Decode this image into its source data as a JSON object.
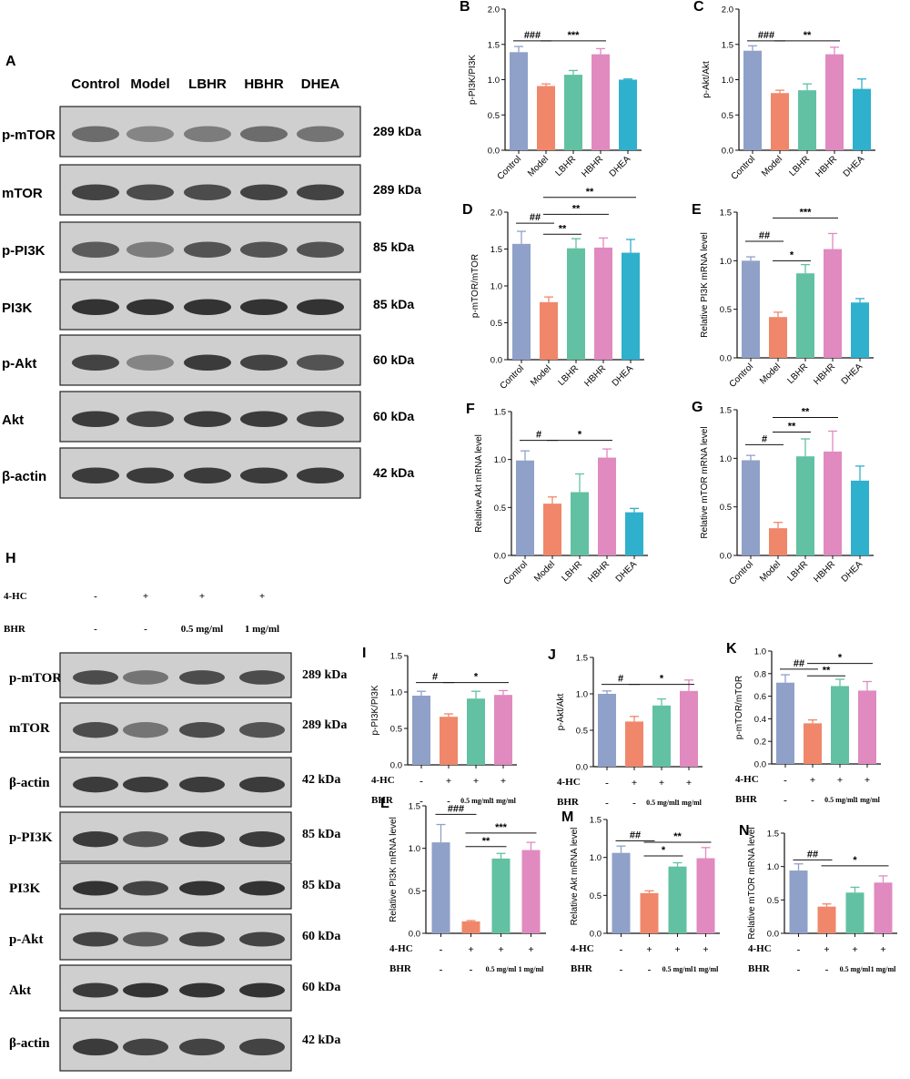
{
  "colors": {
    "Control": "#8fa0c9",
    "Model": "#f0876a",
    "LBHR": "#62c1a2",
    "HBHR": "#e08ac0",
    "DHEA": "#2fb0cc",
    "blot_bg": "#cfcfcf",
    "band": "#2a2a2a"
  },
  "top_blot": {
    "panel_letter": "A",
    "lanes": [
      "Control",
      "Model",
      "LBHR",
      "HBHR",
      "DHEA"
    ],
    "rows": [
      {
        "label": "p-mTOR",
        "kda": "289 kDa",
        "intensity": [
          0.6,
          0.45,
          0.5,
          0.6,
          0.55
        ]
      },
      {
        "label": "mTOR",
        "kda": "289 kDa",
        "intensity": [
          0.85,
          0.8,
          0.8,
          0.85,
          0.85
        ]
      },
      {
        "label": "p-PI3K",
        "kda": "85 kDa",
        "intensity": [
          0.7,
          0.5,
          0.75,
          0.75,
          0.75
        ]
      },
      {
        "label": "PI3K",
        "kda": "85 kDa",
        "intensity": [
          0.95,
          0.95,
          0.95,
          0.95,
          0.95
        ]
      },
      {
        "label": "p-Akt",
        "kda": "60 kDa",
        "intensity": [
          0.85,
          0.45,
          0.9,
          0.85,
          0.75
        ]
      },
      {
        "label": "Akt",
        "kda": "60 kDa",
        "intensity": [
          0.9,
          0.85,
          0.9,
          0.9,
          0.85
        ]
      },
      {
        "label": "β-actin",
        "kda": "42 kDa",
        "intensity": [
          0.9,
          0.9,
          0.9,
          0.9,
          0.9
        ]
      }
    ]
  },
  "bottom_blot": {
    "panel_letter": "H",
    "conditions": [
      {
        "name": "4-HC",
        "values": [
          "-",
          "+",
          "+",
          "+"
        ]
      },
      {
        "name": "BHR",
        "values": [
          "-",
          "-",
          "0.5 mg/ml",
          "1 mg/ml"
        ]
      }
    ],
    "rows": [
      {
        "label": "p-mTOR",
        "kda": "289 kDa",
        "intensity": [
          0.8,
          0.55,
          0.8,
          0.8
        ]
      },
      {
        "label": "mTOR",
        "kda": "289 kDa",
        "intensity": [
          0.8,
          0.55,
          0.8,
          0.75
        ]
      },
      {
        "label": "β-actin",
        "kda": "42 kDa",
        "intensity": [
          0.9,
          0.9,
          0.9,
          0.9
        ]
      },
      {
        "label": "p-PI3K",
        "kda": "85 kDa",
        "intensity": [
          0.9,
          0.75,
          0.9,
          0.9
        ]
      },
      {
        "label": "PI3K",
        "kda": "85 kDa",
        "intensity": [
          0.95,
          0.85,
          0.95,
          0.95
        ]
      },
      {
        "label": "p-Akt",
        "kda": "60 kDa",
        "intensity": [
          0.85,
          0.7,
          0.85,
          0.85
        ]
      },
      {
        "label": "Akt",
        "kda": "60 kDa",
        "intensity": [
          0.9,
          0.95,
          0.95,
          0.95
        ]
      },
      {
        "label": "β-actin",
        "kda": "42 kDa",
        "intensity": [
          0.9,
          0.85,
          0.85,
          0.85
        ]
      }
    ]
  },
  "chart_data": [
    {
      "panel": "B",
      "type": "bar",
      "categories": [
        "Control",
        "Model",
        "LBHR",
        "HBHR",
        "DHEA"
      ],
      "values": [
        1.39,
        0.91,
        1.07,
        1.36,
        1.0
      ],
      "errors": [
        0.08,
        0.03,
        0.06,
        0.08,
        0.01
      ],
      "ylabel": "p-PI3K/PI3K",
      "ylim": [
        0,
        2.0
      ],
      "ticks": [
        "0.0",
        "0.5",
        "1.0",
        "1.5",
        "2.0"
      ],
      "annotations": [
        {
          "from": 0,
          "to": 1,
          "text": "###",
          "y": 1.55
        },
        {
          "from": 1,
          "to": 3,
          "text": "***",
          "y": 1.55
        }
      ]
    },
    {
      "panel": "C",
      "type": "bar",
      "categories": [
        "Control",
        "Model",
        "LBHR",
        "HBHR",
        "DHEA"
      ],
      "values": [
        1.41,
        0.81,
        0.85,
        1.36,
        0.87
      ],
      "errors": [
        0.07,
        0.04,
        0.09,
        0.1,
        0.14
      ],
      "ylabel": "p-Akt/Akt",
      "ylim": [
        0,
        2.0
      ],
      "ticks": [
        "0.0",
        "0.5",
        "1.0",
        "1.5",
        "2.0"
      ],
      "annotations": [
        {
          "from": 0,
          "to": 1,
          "text": "###",
          "y": 1.55
        },
        {
          "from": 1,
          "to": 3,
          "text": "**",
          "y": 1.55
        }
      ]
    },
    {
      "panel": "D",
      "type": "bar",
      "categories": [
        "Control",
        "Model",
        "LBHR",
        "HBHR",
        "DHEA"
      ],
      "values": [
        1.57,
        0.78,
        1.51,
        1.52,
        1.45
      ],
      "errors": [
        0.17,
        0.07,
        0.13,
        0.13,
        0.18
      ],
      "ylabel": "p-mTOR/mTOR",
      "ylim": [
        0,
        2.0
      ],
      "ticks": [
        "0.0",
        "0.5",
        "1.0",
        "1.5",
        "2.0"
      ],
      "annotations": [
        {
          "from": 0,
          "to": 1,
          "text": "##",
          "y": 1.85
        },
        {
          "from": 1,
          "to": 2,
          "text": "**",
          "y": 1.7
        },
        {
          "from": 1,
          "to": 3,
          "text": "**",
          "y": 1.97
        },
        {
          "from": 1,
          "to": 4,
          "text": "**",
          "y": 2.2
        }
      ]
    },
    {
      "panel": "E",
      "type": "bar",
      "categories": [
        "Control",
        "Model",
        "LBHR",
        "HBHR",
        "DHEA"
      ],
      "values": [
        1.0,
        0.42,
        0.87,
        1.12,
        0.57
      ],
      "errors": [
        0.04,
        0.05,
        0.09,
        0.16,
        0.04
      ],
      "ylabel": "Relative PI3K mRNA level",
      "ylim": [
        0,
        1.5
      ],
      "ticks": [
        "0.0",
        "0.5",
        "1.0",
        "1.5"
      ],
      "annotations": [
        {
          "from": 0,
          "to": 1,
          "text": "##",
          "y": 1.2
        },
        {
          "from": 1,
          "to": 2,
          "text": "*",
          "y": 1.0
        },
        {
          "from": 1,
          "to": 3,
          "text": "***",
          "y": 1.44
        }
      ]
    },
    {
      "panel": "F",
      "type": "bar",
      "categories": [
        "Control",
        "Model",
        "LBHR",
        "HBHR",
        "DHEA"
      ],
      "values": [
        0.99,
        0.54,
        0.66,
        1.02,
        0.45
      ],
      "errors": [
        0.1,
        0.07,
        0.19,
        0.09,
        0.04
      ],
      "ylabel": "Relative Akt mRNA level",
      "ylim": [
        0,
        1.5
      ],
      "ticks": [
        "0.0",
        "0.5",
        "1.0",
        "1.5"
      ],
      "annotations": [
        {
          "from": 0,
          "to": 1,
          "text": "#",
          "y": 1.2
        },
        {
          "from": 1,
          "to": 3,
          "text": "*",
          "y": 1.2
        }
      ]
    },
    {
      "panel": "G",
      "type": "bar",
      "categories": [
        "Control",
        "Model",
        "LBHR",
        "HBHR",
        "DHEA"
      ],
      "values": [
        0.98,
        0.28,
        1.02,
        1.07,
        0.77
      ],
      "errors": [
        0.05,
        0.06,
        0.18,
        0.21,
        0.15
      ],
      "ylabel": "Relative mTOR mRNA level",
      "ylim": [
        0,
        1.5
      ],
      "ticks": [
        "0.0",
        "0.5",
        "1.0",
        "1.5"
      ],
      "annotations": [
        {
          "from": 0,
          "to": 1,
          "text": "#",
          "y": 1.14
        },
        {
          "from": 1,
          "to": 2,
          "text": "**",
          "y": 1.27
        },
        {
          "from": 1,
          "to": 3,
          "text": "**",
          "y": 1.42
        }
      ]
    },
    {
      "panel": "I",
      "type": "bar",
      "conditions": [
        {
          "name": "4-HC",
          "values": [
            "-",
            "+",
            "+",
            "+"
          ]
        },
        {
          "name": "BHR",
          "values": [
            "-",
            "-",
            "0.5 mg/ml",
            "1 mg/ml"
          ]
        }
      ],
      "values": [
        0.95,
        0.66,
        0.91,
        0.96
      ],
      "errors": [
        0.06,
        0.04,
        0.1,
        0.06
      ],
      "ylabel": "p-PI3K/PI3K",
      "ylim": [
        0,
        1.5
      ],
      "ticks": [
        "0.0",
        "0.5",
        "1.0",
        "1.5"
      ],
      "annotations": [
        {
          "from": 0,
          "to": 1,
          "text": "#",
          "y": 1.13
        },
        {
          "from": 1,
          "to": 3,
          "text": "*",
          "y": 1.13
        }
      ]
    },
    {
      "panel": "J",
      "type": "bar",
      "conditions": [
        {
          "name": "4-HC",
          "values": [
            "-",
            "+",
            "+",
            "+"
          ]
        },
        {
          "name": "BHR",
          "values": [
            "-",
            "-",
            "0.5 mg/ml",
            "1 mg/ml"
          ]
        }
      ],
      "values": [
        1.0,
        0.62,
        0.84,
        1.04
      ],
      "errors": [
        0.04,
        0.07,
        0.09,
        0.15
      ],
      "ylabel": "p-Akt/Akt",
      "ylim": [
        0,
        1.5
      ],
      "ticks": [
        "0.0",
        "0.5",
        "1.0",
        "1.5"
      ],
      "annotations": [
        {
          "from": 0,
          "to": 1,
          "text": "#",
          "y": 1.13
        },
        {
          "from": 1,
          "to": 3,
          "text": "*",
          "y": 1.13
        }
      ]
    },
    {
      "panel": "K",
      "type": "bar",
      "conditions": [
        {
          "name": "4-HC",
          "values": [
            "-",
            "+",
            "+",
            "+"
          ]
        },
        {
          "name": "BHR",
          "values": [
            "-",
            "-",
            "0.5 mg/ml",
            "1 mg/ml"
          ]
        }
      ],
      "values": [
        0.72,
        0.36,
        0.69,
        0.65
      ],
      "errors": [
        0.07,
        0.03,
        0.06,
        0.08
      ],
      "ylabel": "p-mTOR/mTOR",
      "ylim": [
        0,
        1.0
      ],
      "ticks": [
        "0.0",
        "0.2",
        "0.4",
        "0.6",
        "0.8",
        "1.0"
      ],
      "annotations": [
        {
          "from": 0,
          "to": 1,
          "text": "##",
          "y": 0.84
        },
        {
          "from": 1,
          "to": 2,
          "text": "**",
          "y": 0.78
        },
        {
          "from": 1,
          "to": 3,
          "text": "*",
          "y": 0.89
        }
      ]
    },
    {
      "panel": "L",
      "type": "bar",
      "conditions": [
        {
          "name": "4-HC",
          "values": [
            "-",
            "+",
            "+",
            "+"
          ]
        },
        {
          "name": "BHR",
          "values": [
            "-",
            "-",
            "0.5 mg/ml",
            "1 mg/ml"
          ]
        }
      ],
      "values": [
        1.07,
        0.14,
        0.88,
        0.98
      ],
      "errors": [
        0.21,
        0.01,
        0.06,
        0.09
      ],
      "ylabel": "Relative PI3K mRNA level",
      "ylim": [
        0,
        1.5
      ],
      "ticks": [
        "0.0",
        "0.5",
        "1.0",
        "1.5"
      ],
      "annotations": [
        {
          "from": 0,
          "to": 1,
          "text": "###",
          "y": 1.4
        },
        {
          "from": 1,
          "to": 2,
          "text": "**",
          "y": 1.02
        },
        {
          "from": 1,
          "to": 3,
          "text": "***",
          "y": 1.18
        }
      ]
    },
    {
      "panel": "M",
      "type": "bar",
      "conditions": [
        {
          "name": "4-HC",
          "values": [
            "-",
            "+",
            "+",
            "+"
          ]
        },
        {
          "name": "BHR",
          "values": [
            "-",
            "-",
            "0.5 mg/ml",
            "1 mg/ml"
          ]
        }
      ],
      "values": [
        1.06,
        0.53,
        0.88,
        0.99
      ],
      "errors": [
        0.09,
        0.03,
        0.05,
        0.14
      ],
      "ylabel": "Relative Akt mRNA level",
      "ylim": [
        0,
        1.5
      ],
      "ticks": [
        "0.0",
        "0.5",
        "1.0",
        "1.5"
      ],
      "annotations": [
        {
          "from": 0,
          "to": 1,
          "text": "##",
          "y": 1.22
        },
        {
          "from": 1,
          "to": 2,
          "text": "*",
          "y": 1.02
        },
        {
          "from": 1,
          "to": 3,
          "text": "**",
          "y": 1.2
        }
      ]
    },
    {
      "panel": "N",
      "type": "bar",
      "conditions": [
        {
          "name": "4-HC",
          "values": [
            "-",
            "+",
            "+",
            "+"
          ]
        },
        {
          "name": "BHR",
          "values": [
            "-",
            "-",
            "0.5 mg/ml",
            "1 mg/ml"
          ]
        }
      ],
      "values": [
        0.94,
        0.4,
        0.61,
        0.76
      ],
      "errors": [
        0.1,
        0.04,
        0.08,
        0.1
      ],
      "ylabel": "Relative mTOR mRNA level",
      "ylim": [
        0,
        1.5
      ],
      "ticks": [
        "0.0",
        "0.5",
        "1.0",
        "1.5"
      ],
      "annotations": [
        {
          "from": 0,
          "to": 1,
          "text": "##",
          "y": 1.1
        },
        {
          "from": 1,
          "to": 3,
          "text": "*",
          "y": 1.01
        }
      ]
    }
  ]
}
